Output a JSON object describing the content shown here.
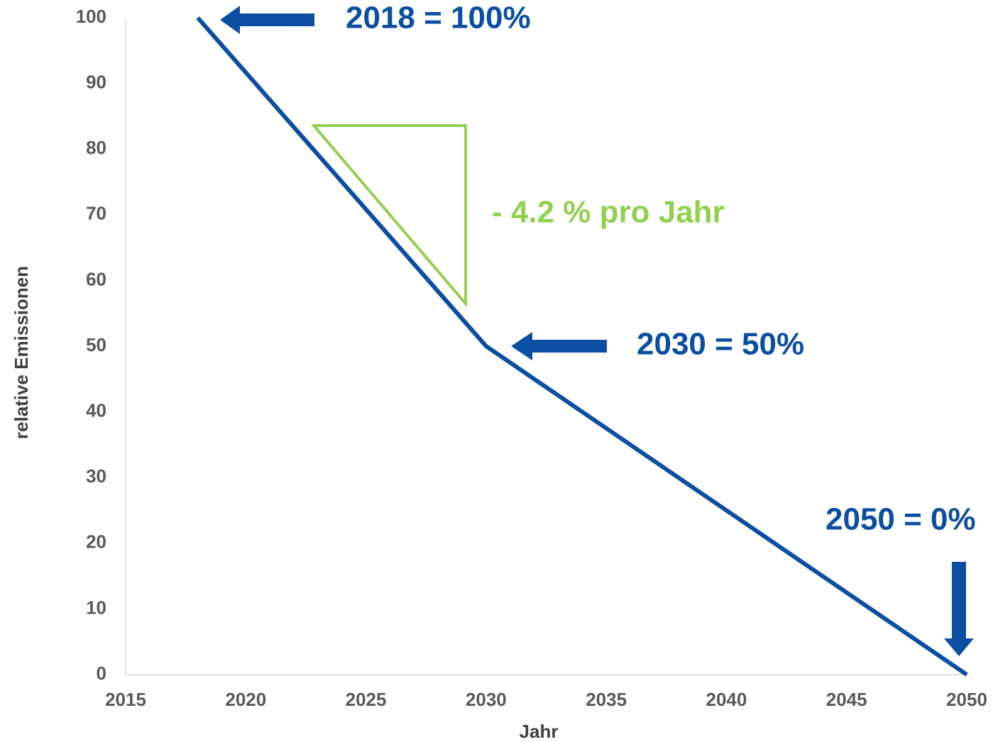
{
  "chart_data": {
    "type": "line",
    "xlabel": "Jahr",
    "ylabel": "relative Emissionen",
    "x": [
      2018,
      2030,
      2050
    ],
    "values": [
      100,
      50,
      0
    ],
    "color": "#0b4ea2",
    "xlim": [
      2015,
      2050
    ],
    "xticks": [
      2015,
      2020,
      2025,
      2030,
      2035,
      2040,
      2045,
      2050
    ],
    "ylim": [
      0,
      100
    ],
    "yticks": [
      0,
      10,
      20,
      30,
      40,
      50,
      60,
      70,
      80,
      90,
      100
    ],
    "grid": false,
    "annotations": [
      {
        "text": "2018 = 100%",
        "color": "#0b4ea2"
      },
      {
        "text": "2030 = 50%",
        "color": "#0b4ea2"
      },
      {
        "text": "2050 = 0%",
        "color": "#0b4ea2"
      },
      {
        "text": "- 4.2 % pro Jahr",
        "color": "#92d050"
      }
    ]
  }
}
